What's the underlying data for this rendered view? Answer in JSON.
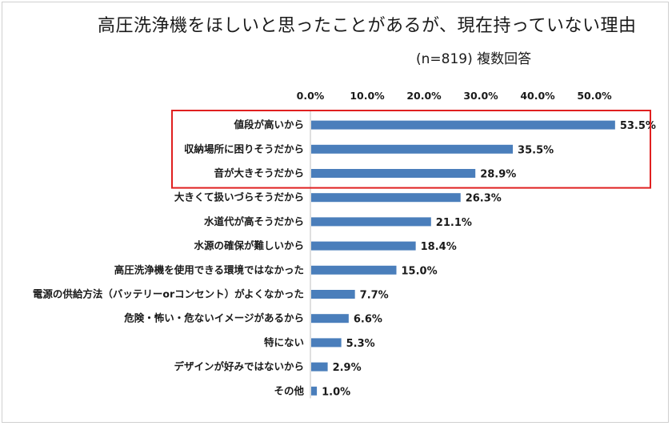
{
  "chart_data": {
    "type": "bar",
    "orientation": "horizontal",
    "title": "高圧洗浄機をほしいと思ったことがあるが、現在持っていない理由",
    "subtitle": "(n=819) 複数回答",
    "xlim": [
      0,
      55
    ],
    "tick_values": [
      0,
      10,
      20,
      30,
      40,
      50
    ],
    "tick_labels": [
      "0.0%",
      "10.0%",
      "20.0%",
      "30.0%",
      "40.0%",
      "50.0%"
    ],
    "categories": [
      "値段が高いから",
      "収納場所に困りそうだから",
      "音が大きそうだから",
      "大きくて扱いづらそうだから",
      "水道代が高そうだから",
      "水源の確保が難しいから",
      "高圧洗浄機を使用できる環境ではなかった",
      "電源の供給方法（バッテリーorコンセント）がよくなかった",
      "危険・怖い・危ないイメージがあるから",
      "特にない",
      "デザインが好みではないから",
      "その他"
    ],
    "values": [
      53.5,
      35.5,
      28.9,
      26.3,
      21.1,
      18.4,
      15.0,
      7.7,
      6.6,
      5.3,
      2.9,
      1.0
    ],
    "data_labels": [
      "53.5%",
      "35.5%",
      "28.9%",
      "26.3%",
      "21.1%",
      "18.4%",
      "15.0%",
      "7.7%",
      "6.6%",
      "5.3%",
      "2.9%",
      "1.0%"
    ],
    "highlight_count": 3,
    "colors": {
      "bar": "#4a7ebb",
      "highlight_box": "#e02020"
    }
  }
}
